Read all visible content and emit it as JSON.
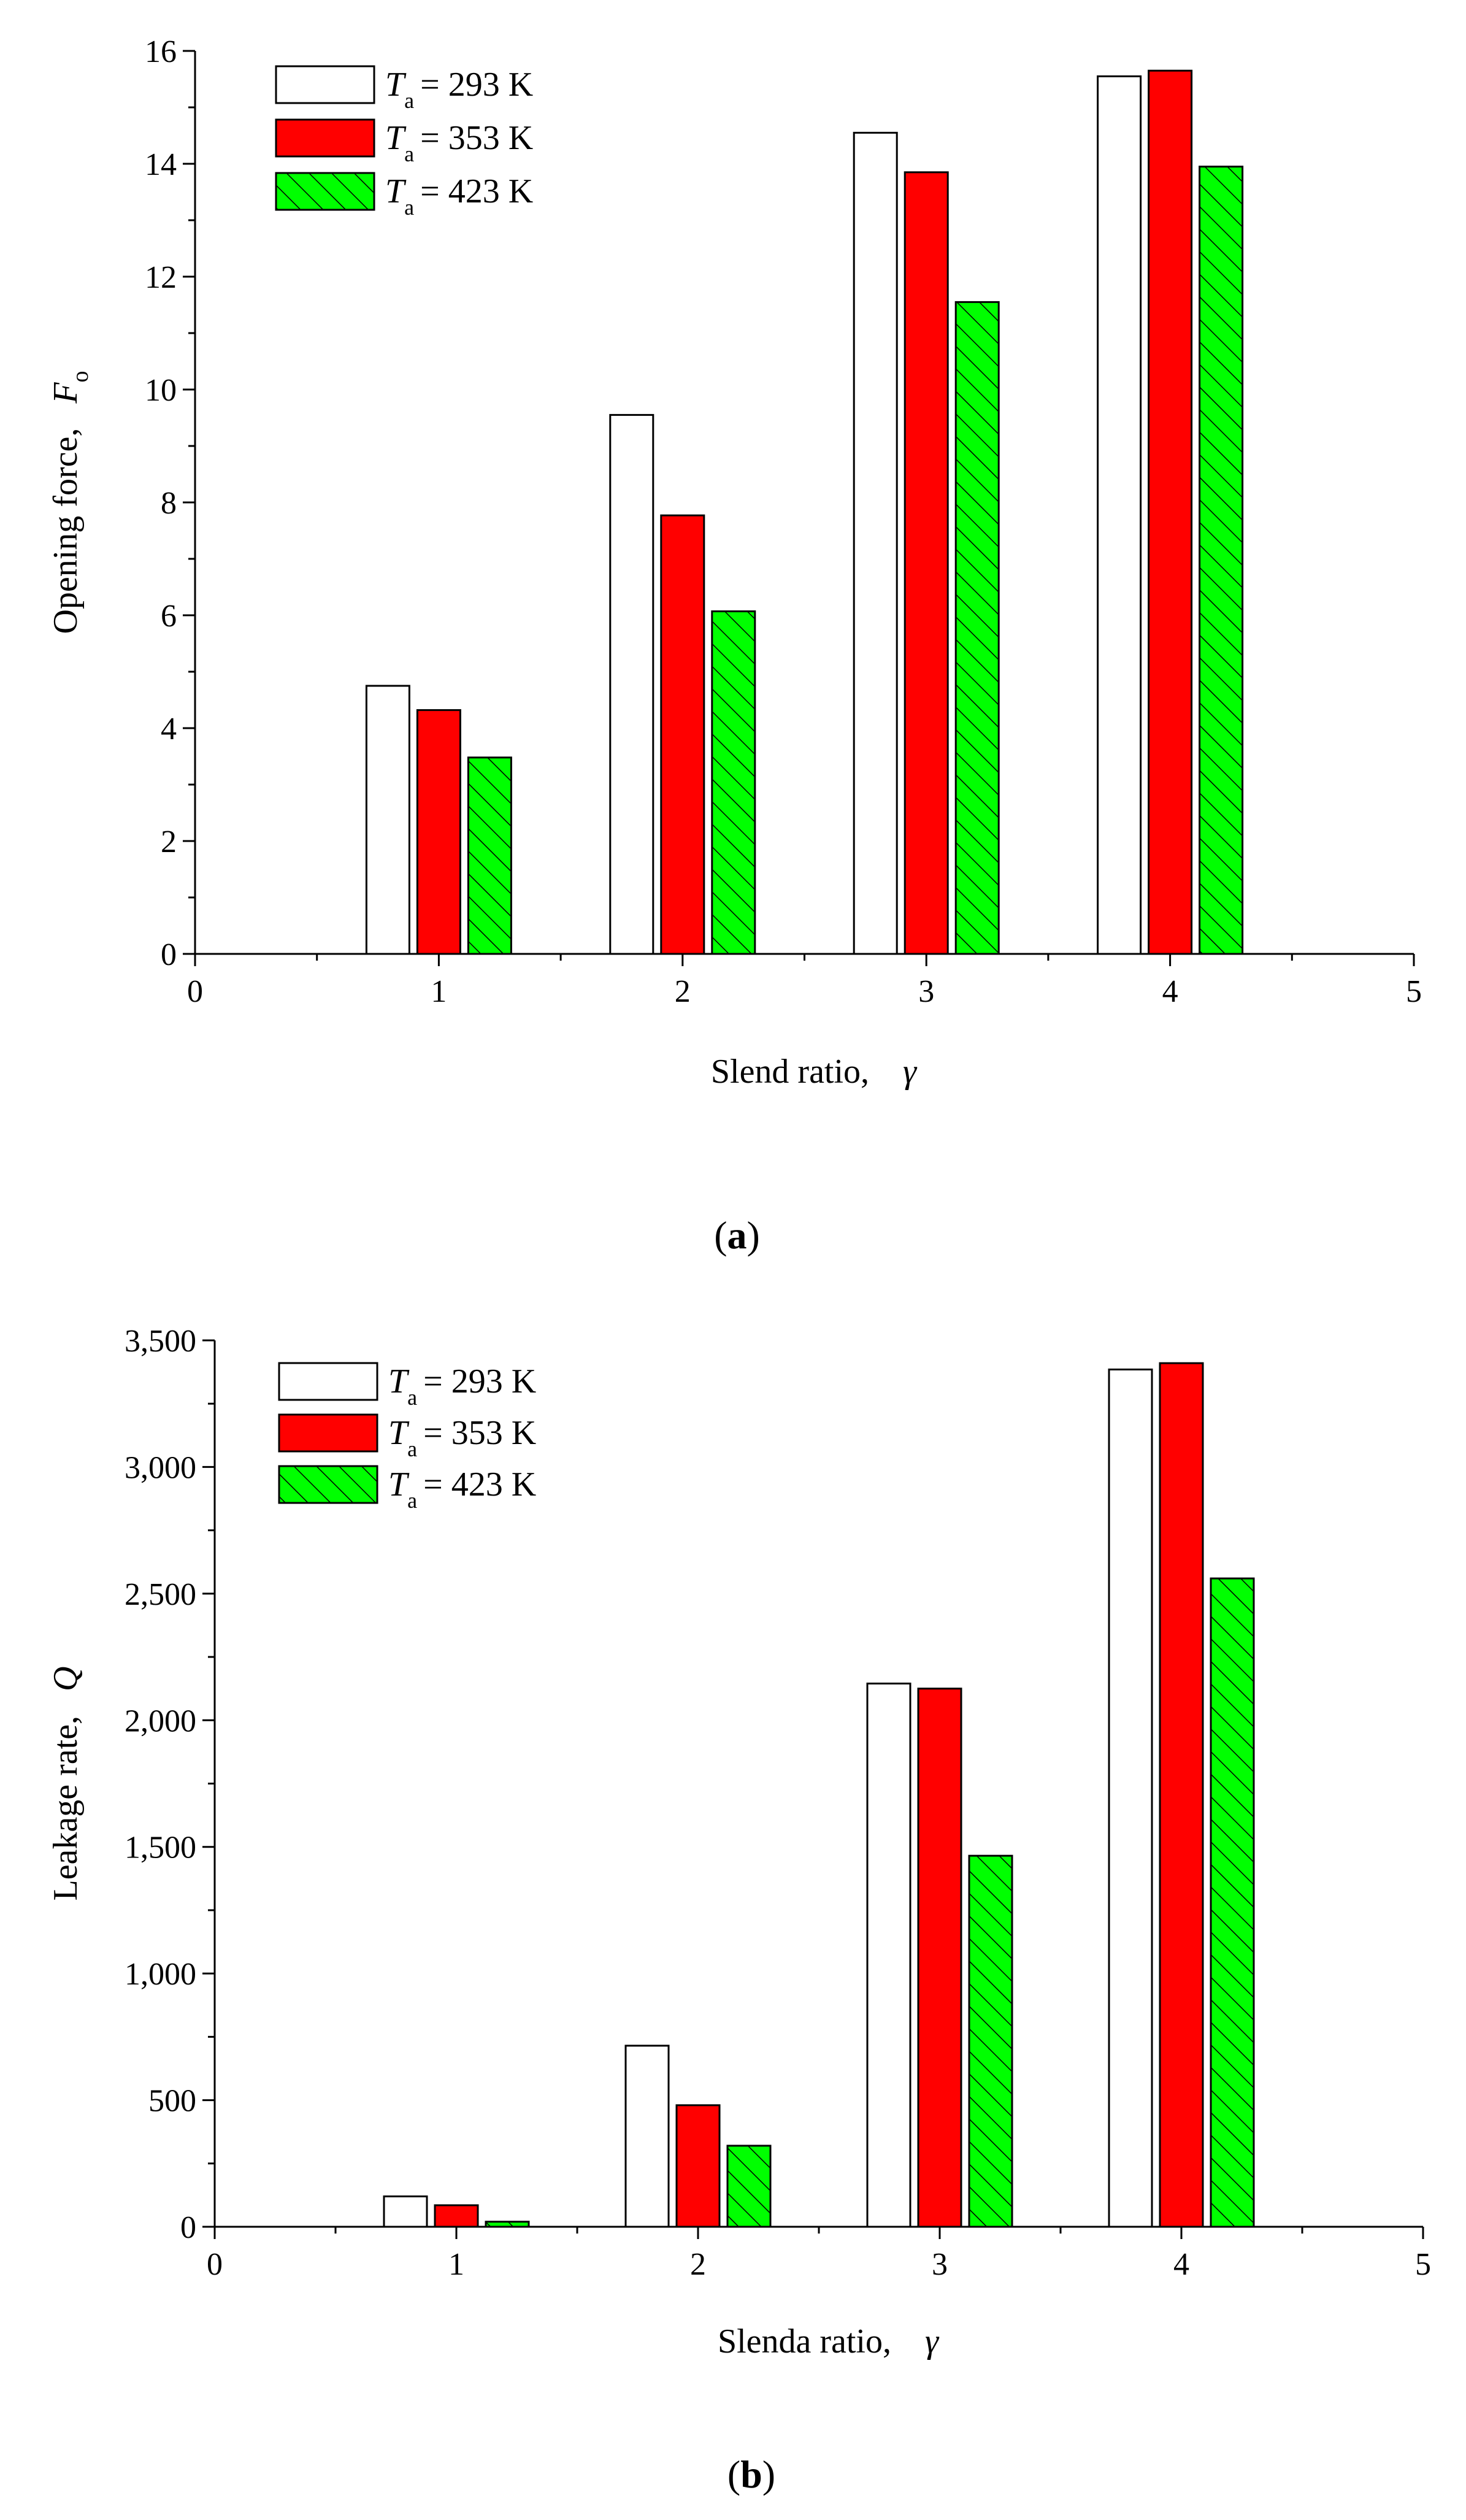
{
  "chart_data": [
    {
      "type": "bar",
      "panel": "a",
      "caption_letter": "a",
      "categories": [
        1,
        2,
        3,
        4
      ],
      "xlim": [
        0,
        5
      ],
      "xticks": [
        "0",
        "1",
        "2",
        "3",
        "4",
        "5"
      ],
      "ylim": [
        0,
        16
      ],
      "yticks": [
        "0",
        "2",
        "4",
        "6",
        "8",
        "10",
        "12",
        "14",
        "16"
      ],
      "ytick_values": [
        0,
        2,
        4,
        6,
        8,
        10,
        12,
        14,
        16
      ],
      "xlabel": "Slend ratio,",
      "xlabel_symbol": "γ",
      "ylabel": "Opening force,",
      "ylabel_symbol": "F",
      "ylabel_sub": "o",
      "legend_position": "top-left",
      "series": [
        {
          "legend_T": "T",
          "legend_sub": "a",
          "legend_value": "= 293 K",
          "values": [
            4.75,
            9.55,
            14.55,
            15.55
          ],
          "fill": "#ffffff",
          "pattern": "none"
        },
        {
          "legend_T": "T",
          "legend_sub": "a",
          "legend_value": "= 353 K",
          "values": [
            4.32,
            7.77,
            13.85,
            15.65
          ],
          "fill": "#ff0000",
          "pattern": "none"
        },
        {
          "legend_T": "T",
          "legend_sub": "a",
          "legend_value": "= 423 K",
          "values": [
            3.48,
            6.07,
            11.55,
            13.95
          ],
          "fill": "#00ff00",
          "pattern": "hatch"
        }
      ]
    },
    {
      "type": "bar",
      "panel": "b",
      "caption_letter": "b",
      "categories": [
        1,
        2,
        3,
        4
      ],
      "xlim": [
        0,
        5
      ],
      "xticks": [
        "0",
        "1",
        "2",
        "3",
        "4",
        "5"
      ],
      "ylim": [
        0,
        3500
      ],
      "yticks": [
        "0",
        "500",
        "1,000",
        "1,500",
        "2,000",
        "2,500",
        "3,000",
        "3,500"
      ],
      "ytick_values": [
        0,
        500,
        1000,
        1500,
        2000,
        2500,
        3000,
        3500
      ],
      "xlabel": "Slenda ratio,",
      "xlabel_symbol": "γ",
      "ylabel": "Leakage rate,",
      "ylabel_symbol": "Q",
      "ylabel_sub": "",
      "legend_position": "top-left",
      "series": [
        {
          "legend_T": "T",
          "legend_sub": "a",
          "legend_value": "= 293 K",
          "values": [
            120,
            715,
            2145,
            3385
          ],
          "fill": "#ffffff",
          "pattern": "none"
        },
        {
          "legend_T": "T",
          "legend_sub": "a",
          "legend_value": "= 353 K",
          "values": [
            85,
            480,
            2125,
            3410
          ],
          "fill": "#ff0000",
          "pattern": "none"
        },
        {
          "legend_T": "T",
          "legend_sub": "a",
          "legend_value": "= 423 K",
          "values": [
            20,
            320,
            1465,
            2560
          ],
          "fill": "#00ff00",
          "pattern": "hatch"
        }
      ]
    }
  ]
}
